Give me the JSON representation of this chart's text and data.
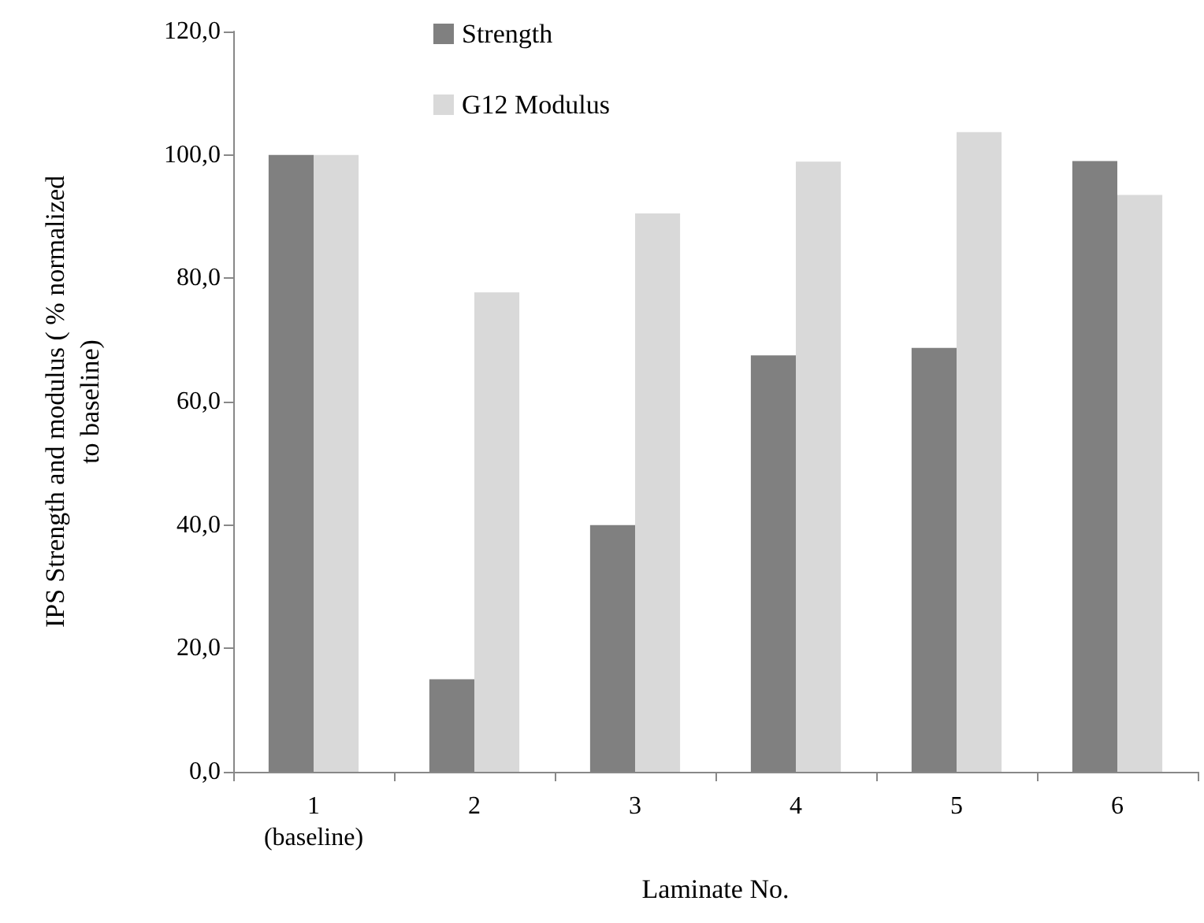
{
  "chart_data": {
    "type": "bar",
    "xlabel": "Laminate No.",
    "ylabel": "IPS Strength and modulus ( % normalized\nto baseline)",
    "categories": [
      "1\n(baseline)",
      "2",
      "3",
      "4",
      "5",
      "6"
    ],
    "series": [
      {
        "name": "Strength",
        "color": "#808080",
        "values": [
          100,
          15,
          40,
          67.5,
          68.7,
          99
        ]
      },
      {
        "name": "G12 Modulus",
        "color": "#d9d9d9",
        "values": [
          100,
          77.7,
          90.5,
          98.9,
          103.7,
          93.5
        ]
      }
    ],
    "ylim": [
      0,
      120
    ],
    "yticks": [
      {
        "value": 0,
        "label": "0,0"
      },
      {
        "value": 20,
        "label": "20,0"
      },
      {
        "value": 40,
        "label": "40,0"
      },
      {
        "value": 60,
        "label": "60,0"
      },
      {
        "value": 80,
        "label": "80,0"
      },
      {
        "value": 100,
        "label": "100,0"
      },
      {
        "value": 120,
        "label": "120,0"
      }
    ],
    "grid": false,
    "legend": "top"
  }
}
